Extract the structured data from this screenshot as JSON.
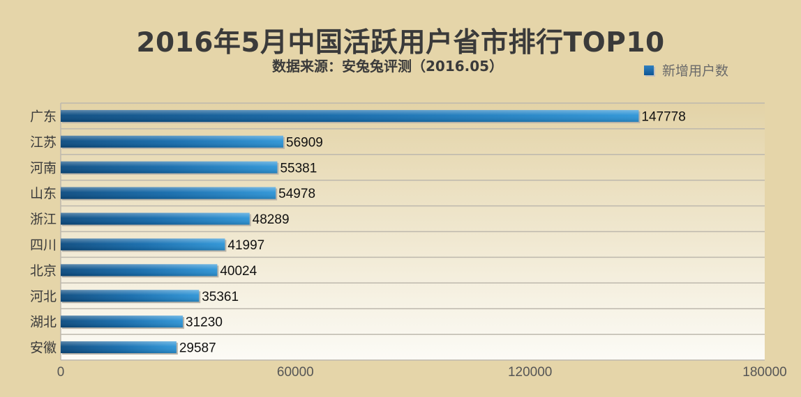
{
  "chart_data": {
    "type": "bar",
    "orientation": "horizontal",
    "title": "2016年5月中国活跃用户省市排行TOP10",
    "subtitle": "数据来源：安兔兔评测（2016.05）",
    "categories": [
      "广东",
      "江苏",
      "河南",
      "山东",
      "浙江",
      "四川",
      "北京",
      "河北",
      "湖北",
      "安徽"
    ],
    "series": [
      {
        "name": "新增用户数",
        "values": [
          147778,
          56909,
          55381,
          54978,
          48289,
          41997,
          40024,
          35361,
          31230,
          29587
        ]
      }
    ],
    "x_ticks": [
      "0",
      "60000",
      "120000",
      "180000"
    ],
    "xlim": [
      0,
      180000
    ],
    "legend_position": "top-right",
    "grid": true,
    "colors": {
      "bar_dark": "#0a5490",
      "bar_light": "#1f8ad0",
      "background": "#e5d5a9"
    }
  }
}
